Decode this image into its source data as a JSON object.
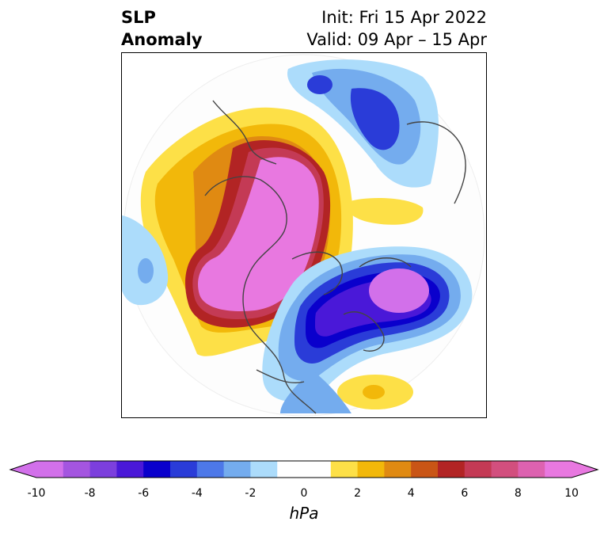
{
  "title": {
    "left_line1": "SLP",
    "left_line2": "Anomaly",
    "right_line1": "Init: Fri 15 Apr 2022",
    "right_line2": "Valid: 09 Apr – 15 Apr"
  },
  "colorbar": {
    "unit": "hPa",
    "ticks": [
      "-10",
      "-8",
      "-6",
      "-4",
      "-2",
      "0",
      "2",
      "4",
      "6",
      "8",
      "10"
    ],
    "colors": [
      "#d270ea",
      "#a455e0",
      "#7c3fdd",
      "#4a18d8",
      "#0a00cc",
      "#2a3cd8",
      "#4d78e8",
      "#74acee",
      "#acdcfb",
      "#ffffff",
      "#ffffff",
      "#fde047",
      "#f2b80a",
      "#e08a12",
      "#c95516",
      "#b22424",
      "#c43a55",
      "#d24f7e",
      "#dd62b0",
      "#e878e0"
    ],
    "min": -10,
    "max": 10
  }
}
